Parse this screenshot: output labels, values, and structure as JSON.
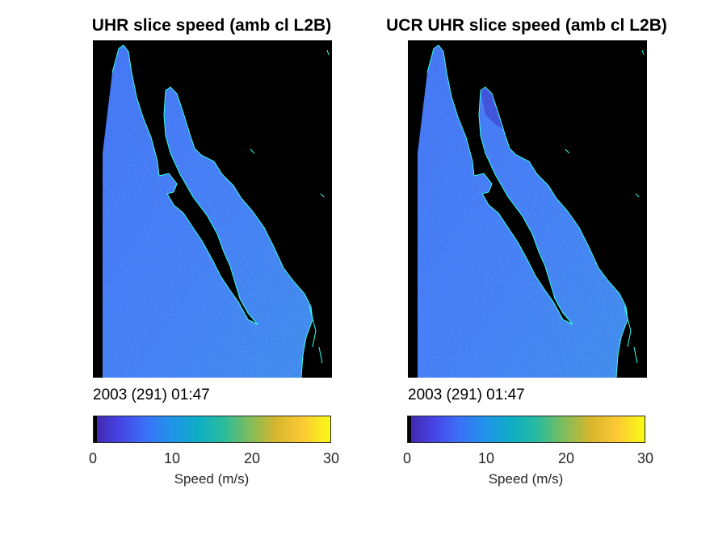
{
  "chart_data": [
    {
      "type": "heatmap",
      "title": "UHR slice speed (amb cl L2B)",
      "timestamp": "2003 (291) 01:47",
      "colorbar": {
        "label": "Speed (m/s)",
        "range": [
          0,
          30
        ],
        "ticks": [
          "0",
          "10",
          "20",
          "30"
        ]
      }
    },
    {
      "type": "heatmap",
      "title": "UCR UHR slice speed (amb cl L2B)",
      "timestamp": "2003 (291) 01:47",
      "colorbar": {
        "label": "Speed (m/s)",
        "range": [
          0,
          30
        ],
        "ticks": [
          "0",
          "10",
          "20",
          "30"
        ]
      }
    }
  ],
  "colors": {
    "background": "#000000",
    "coastline": "#33ffee",
    "colormap": [
      "#3e26a8",
      "#4743e4",
      "#3b70f8",
      "#1f94e8",
      "#0eaec5",
      "#2abb9b",
      "#81bd5a",
      "#d7b62d",
      "#fcc935",
      "#f9fb14"
    ],
    "land": "#000000"
  }
}
